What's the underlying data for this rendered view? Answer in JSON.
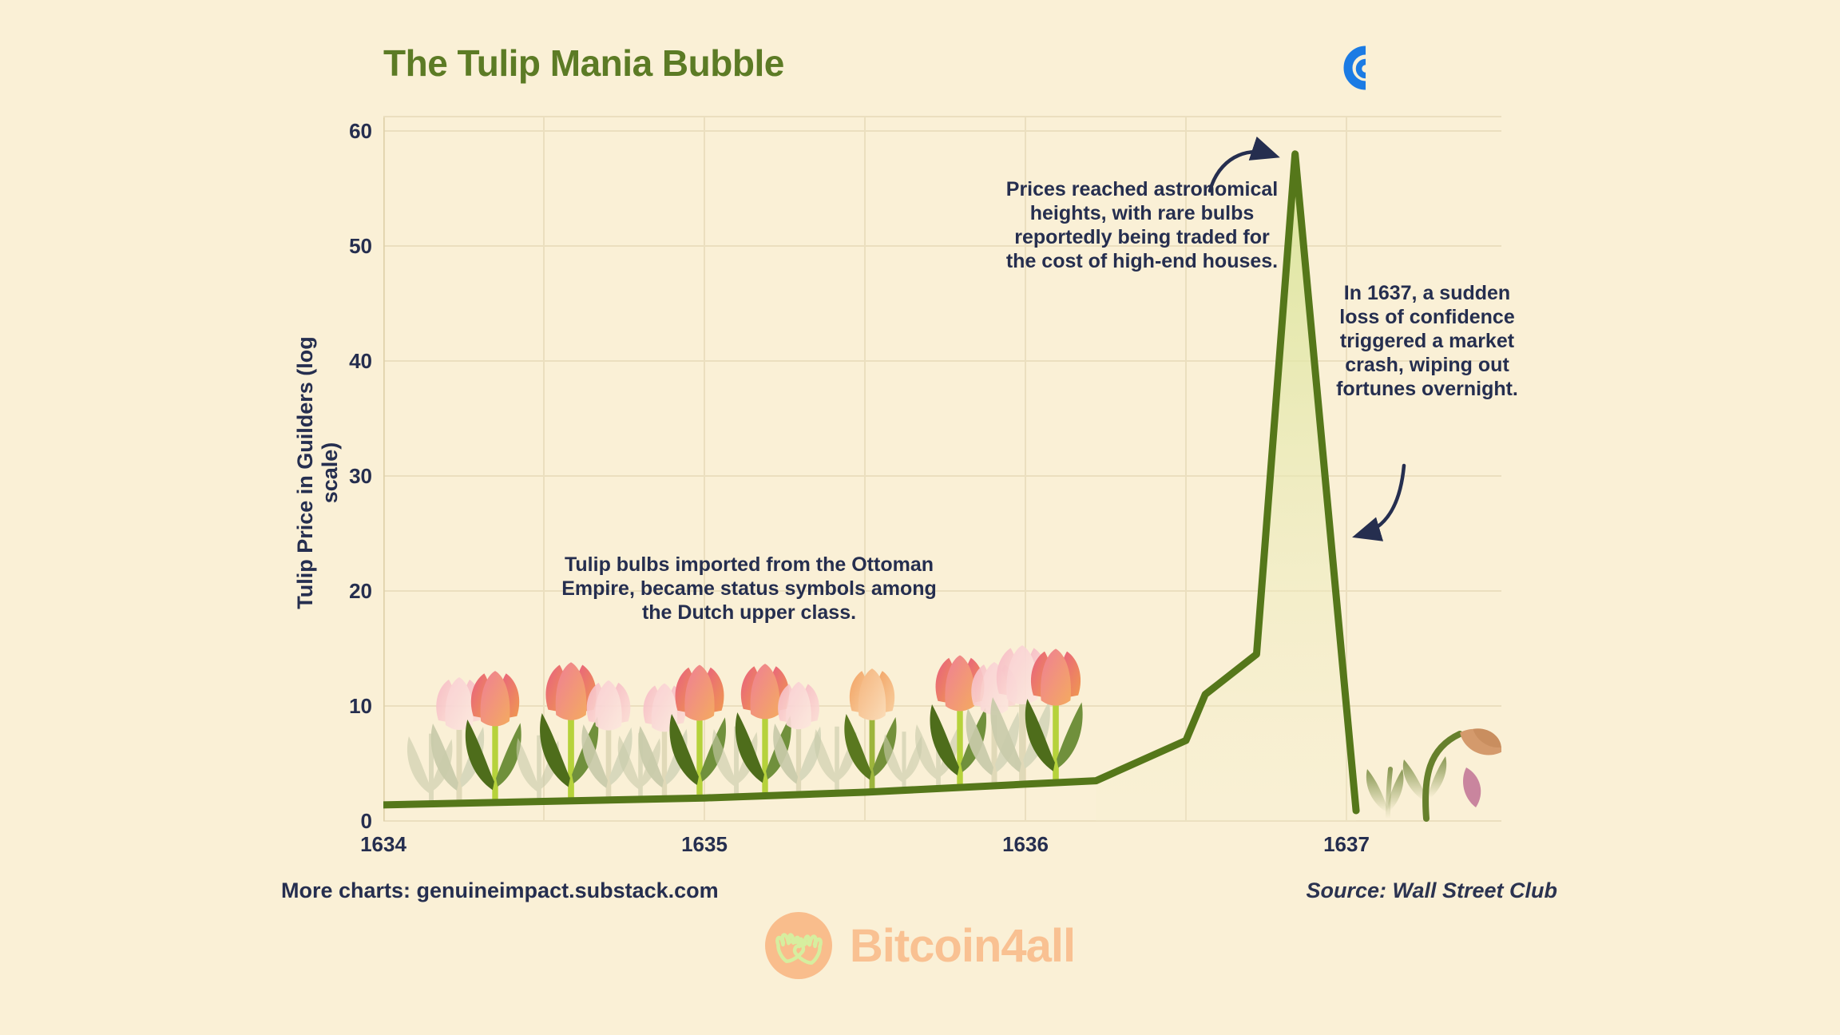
{
  "title": "The Tulip Mania Bubble",
  "y_axis_title": "Tulip Price in Guilders (log scale)",
  "annotations": {
    "boom": "Tulip bulbs imported from the Ottoman Empire, became status symbols among the Dutch upper class.",
    "peak": "Prices reached astronomical heights, with rare bulbs reportedly being traded for the cost of high-end houses.",
    "crash": "In 1637, a sudden loss of confidence triggered a market crash, wiping out fortunes overnight."
  },
  "footer": {
    "more_charts": "More charts: genuineimpact.substack.com",
    "source": "Source: Wall Street Club",
    "brand": "Bitcoin4all"
  },
  "icons": {
    "brand_mark": "blue-concentric-c-logo",
    "logo_badge": "high-five-hands-in-circle"
  },
  "colors": {
    "background": "#faf0d6",
    "grid": "#ebdfbf",
    "axis": "#e0d2ab",
    "text_navy": "#252e4f",
    "title_green": "#5c7b25",
    "line_olive": "#55771a",
    "area_fill_top": "#d9e497",
    "blue_icon": "#1b7be4",
    "logo_peach": "#f9bd8c",
    "logo_hands_green": "#d6ee9f"
  },
  "chart_data": {
    "type": "line",
    "title": "The Tulip Mania Bubble",
    "xlabel": "",
    "ylabel": "Tulip Price in Guilders (log scale)",
    "x_ticks": [
      1634,
      1635,
      1636,
      1637
    ],
    "y_ticks": [
      0,
      10,
      20,
      30,
      40,
      50,
      60
    ],
    "xlim": [
      1634,
      1637.48
    ],
    "ylim": [
      0,
      60
    ],
    "grid": true,
    "legend": "none",
    "series": [
      {
        "name": "Tulip price in guilders",
        "points": [
          [
            1634.0,
            1.4
          ],
          [
            1634.5,
            1.7
          ],
          [
            1635.0,
            2.0
          ],
          [
            1635.5,
            2.5
          ],
          [
            1636.0,
            3.2
          ],
          [
            1636.22,
            3.5
          ],
          [
            1636.5,
            7.0
          ],
          [
            1636.56,
            11.0
          ],
          [
            1636.72,
            14.5
          ],
          [
            1636.84,
            58.0
          ],
          [
            1637.03,
            0.9
          ]
        ]
      }
    ],
    "annotations_on_chart": [
      {
        "target": "peak",
        "value": 58,
        "year": 1636.84
      },
      {
        "target": "crash",
        "value": 0.9,
        "year": 1637.03
      }
    ]
  }
}
